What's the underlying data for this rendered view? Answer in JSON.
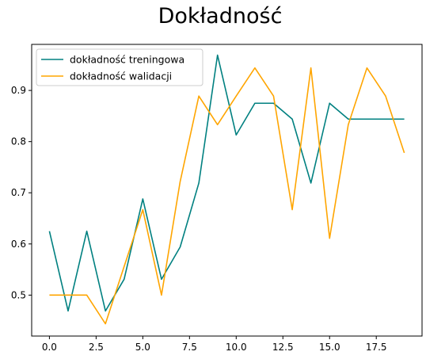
{
  "chart_data": {
    "type": "line",
    "title": "Dokładność",
    "xlabel": "",
    "ylabel": "",
    "x": [
      0,
      1,
      2,
      3,
      4,
      5,
      6,
      7,
      8,
      9,
      10,
      11,
      12,
      13,
      14,
      15,
      16,
      17,
      18,
      19
    ],
    "xlim": [
      -0.95,
      19.95
    ],
    "ylim": [
      0.42,
      0.99
    ],
    "x_ticks": [
      0,
      2.5,
      5,
      7.5,
      10,
      12.5,
      15,
      17.5
    ],
    "x_tick_labels": [
      "0.0",
      "2.5",
      "5.0",
      "7.5",
      "10.0",
      "12.5",
      "15.0",
      "17.5"
    ],
    "y_ticks": [
      0.5,
      0.6,
      0.7,
      0.8,
      0.9
    ],
    "y_tick_labels": [
      "0.5",
      "0.6",
      "0.7",
      "0.8",
      "0.9"
    ],
    "grid": false,
    "legend_position": "top-left",
    "series": [
      {
        "name": "dokładność treningowa",
        "color": "#008080",
        "values": [
          0.625,
          0.469,
          0.625,
          0.469,
          0.531,
          0.688,
          0.531,
          0.594,
          0.719,
          0.969,
          0.813,
          0.875,
          0.875,
          0.844,
          0.719,
          0.875,
          0.844,
          0.844,
          0.844,
          0.844
        ]
      },
      {
        "name": "dokładność walidacji",
        "color": "#FFA500",
        "values": [
          0.5,
          0.5,
          0.5,
          0.444,
          0.556,
          0.667,
          0.5,
          0.722,
          0.889,
          0.833,
          0.889,
          0.944,
          0.889,
          0.667,
          0.944,
          0.611,
          0.833,
          0.944,
          0.889,
          0.778
        ]
      }
    ]
  }
}
